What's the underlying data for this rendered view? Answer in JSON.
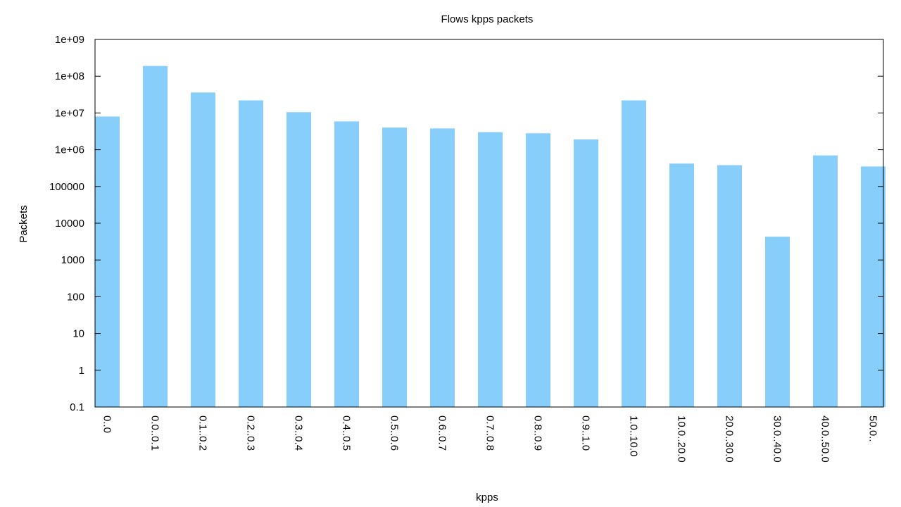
{
  "chart_data": {
    "type": "bar",
    "title": "Flows kpps packets",
    "xlabel": "kpps",
    "ylabel": "Packets",
    "yscale": "log",
    "ylim": [
      0.1,
      1000000000
    ],
    "yticks": [
      {
        "value": 0.1,
        "label": "0.1"
      },
      {
        "value": 1,
        "label": "1"
      },
      {
        "value": 10,
        "label": "10"
      },
      {
        "value": 100,
        "label": "100"
      },
      {
        "value": 1000,
        "label": "1000"
      },
      {
        "value": 10000,
        "label": "10000"
      },
      {
        "value": 100000,
        "label": "100000"
      },
      {
        "value": 1000000,
        "label": "1e+06"
      },
      {
        "value": 10000000,
        "label": "1e+07"
      },
      {
        "value": 100000000,
        "label": "1e+08"
      },
      {
        "value": 1000000000,
        "label": "1e+09"
      }
    ],
    "categories": [
      "0..0",
      "0.0..0.1",
      "0.1..0.2",
      "0.2..0.3",
      "0.3..0.4",
      "0.4..0.5",
      "0.5..0.6",
      "0.6..0.7",
      "0.7..0.8",
      "0.8..0.9",
      "0.9..1.0",
      "1.0..10.0",
      "10.0..20.0",
      "20.0..30.0",
      "30.0..40.0",
      "40.0..50.0",
      "50.0.."
    ],
    "values": [
      8000000,
      190000000,
      36000000,
      22000000,
      10500000,
      5900000,
      4000000,
      3800000,
      3000000,
      2800000,
      1900000,
      22000000,
      420000,
      380000,
      4300,
      700000,
      350000
    ],
    "bar_color": "#87cefa",
    "grid": false,
    "legend": "none"
  }
}
